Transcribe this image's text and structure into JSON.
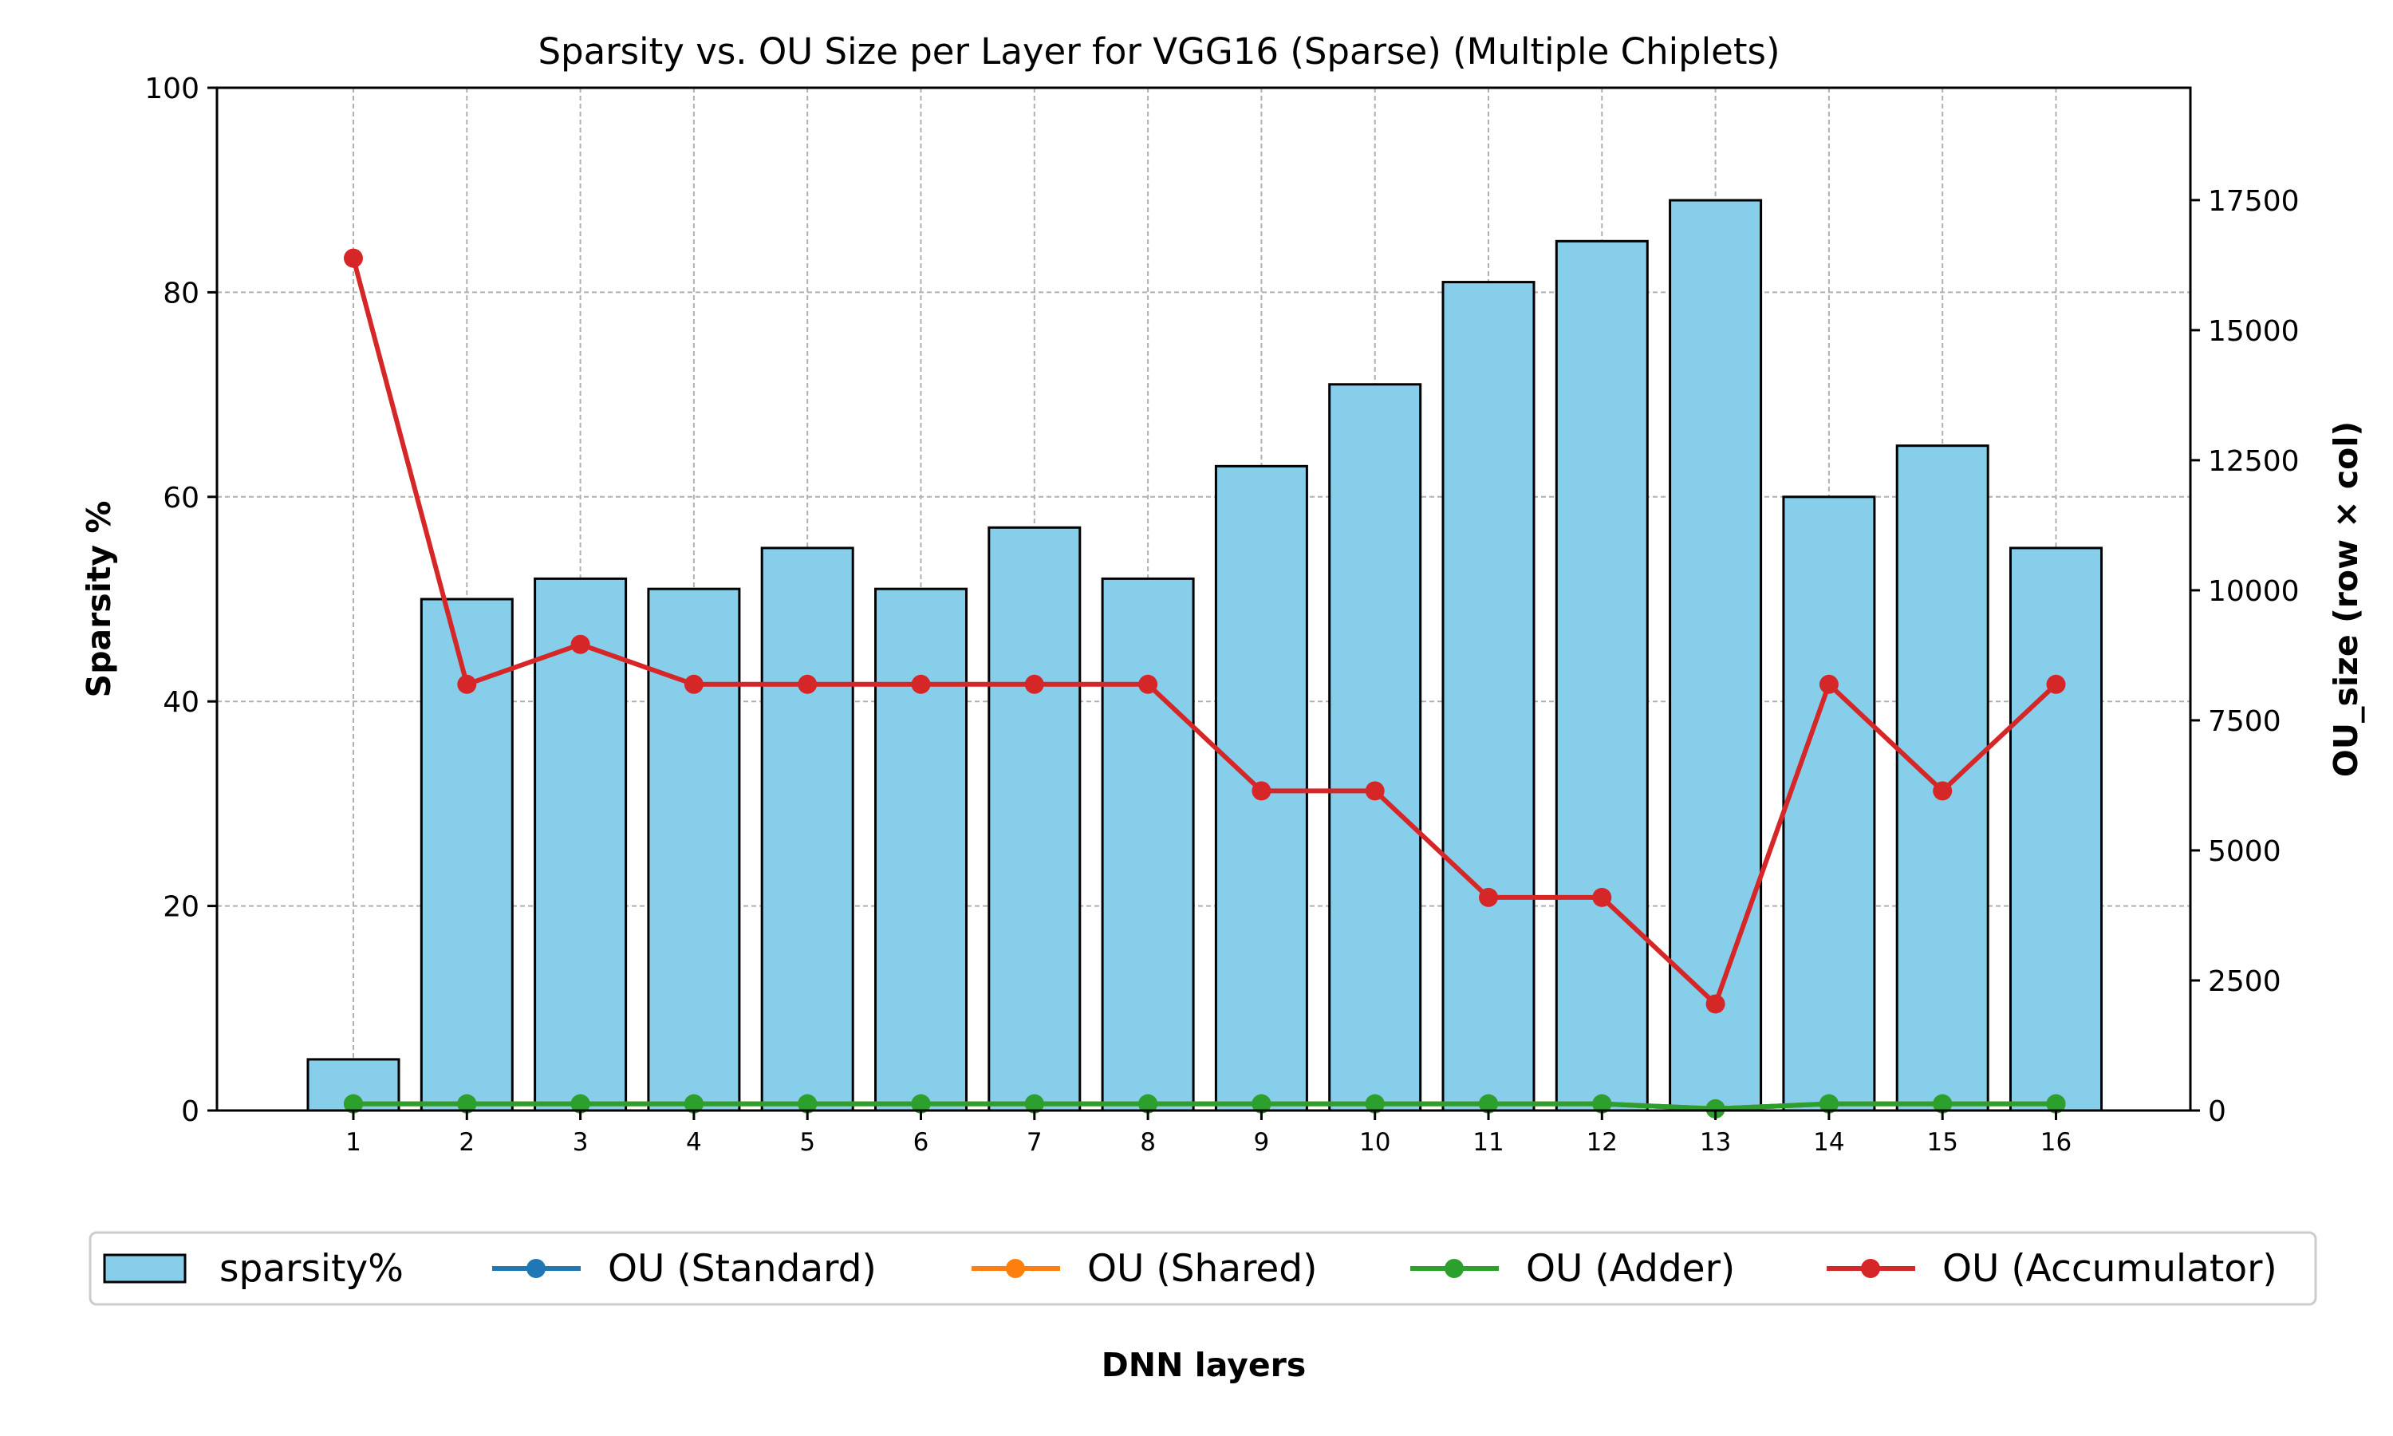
{
  "chart_data": {
    "type": "bar",
    "title": "Sparsity vs. OU Size per Layer for VGG16 (Sparse) (Multiple Chiplets)",
    "xlabel": "DNN layers",
    "ylabel": "Sparsity %",
    "y2label": "OU_size (row × col)",
    "categories": [
      "1",
      "2",
      "3",
      "4",
      "5",
      "6",
      "7",
      "8",
      "9",
      "10",
      "11",
      "12",
      "13",
      "14",
      "15",
      "16"
    ],
    "ylim": [
      0,
      100
    ],
    "y2lim": [
      0,
      19660
    ],
    "yticks": [
      "0",
      "20",
      "40",
      "60",
      "80",
      "100"
    ],
    "y2ticks": [
      "0",
      "2500",
      "5000",
      "7500",
      "10000",
      "12500",
      "15000",
      "17500"
    ],
    "grid": true,
    "legend_position": "bottom",
    "bar_series": {
      "name": "sparsity%",
      "color": "#87ceeb",
      "values": [
        5,
        50,
        52,
        51,
        55,
        51,
        57,
        52,
        63,
        71,
        81,
        85,
        89,
        60,
        65,
        55
      ]
    },
    "line_series": [
      {
        "name": "OU (Standard)",
        "color": "#1f77b4",
        "values": [
          128,
          128,
          128,
          128,
          128,
          128,
          128,
          128,
          128,
          128,
          128,
          128,
          32,
          128,
          128,
          128
        ]
      },
      {
        "name": "OU (Shared)",
        "color": "#ff7f0e",
        "values": [
          128,
          128,
          128,
          128,
          128,
          128,
          128,
          128,
          128,
          128,
          128,
          128,
          32,
          128,
          128,
          128
        ]
      },
      {
        "name": "OU (Adder)",
        "color": "#2ca02c",
        "values": [
          128,
          128,
          128,
          128,
          128,
          128,
          128,
          128,
          128,
          128,
          128,
          128,
          32,
          128,
          128,
          128
        ]
      },
      {
        "name": "OU (Accumulator)",
        "color": "#d62728",
        "values": [
          16384,
          8192,
          8960,
          8192,
          8192,
          8192,
          8192,
          8192,
          6144,
          6144,
          4096,
          4096,
          2048,
          8192,
          6144,
          8192
        ]
      }
    ]
  }
}
